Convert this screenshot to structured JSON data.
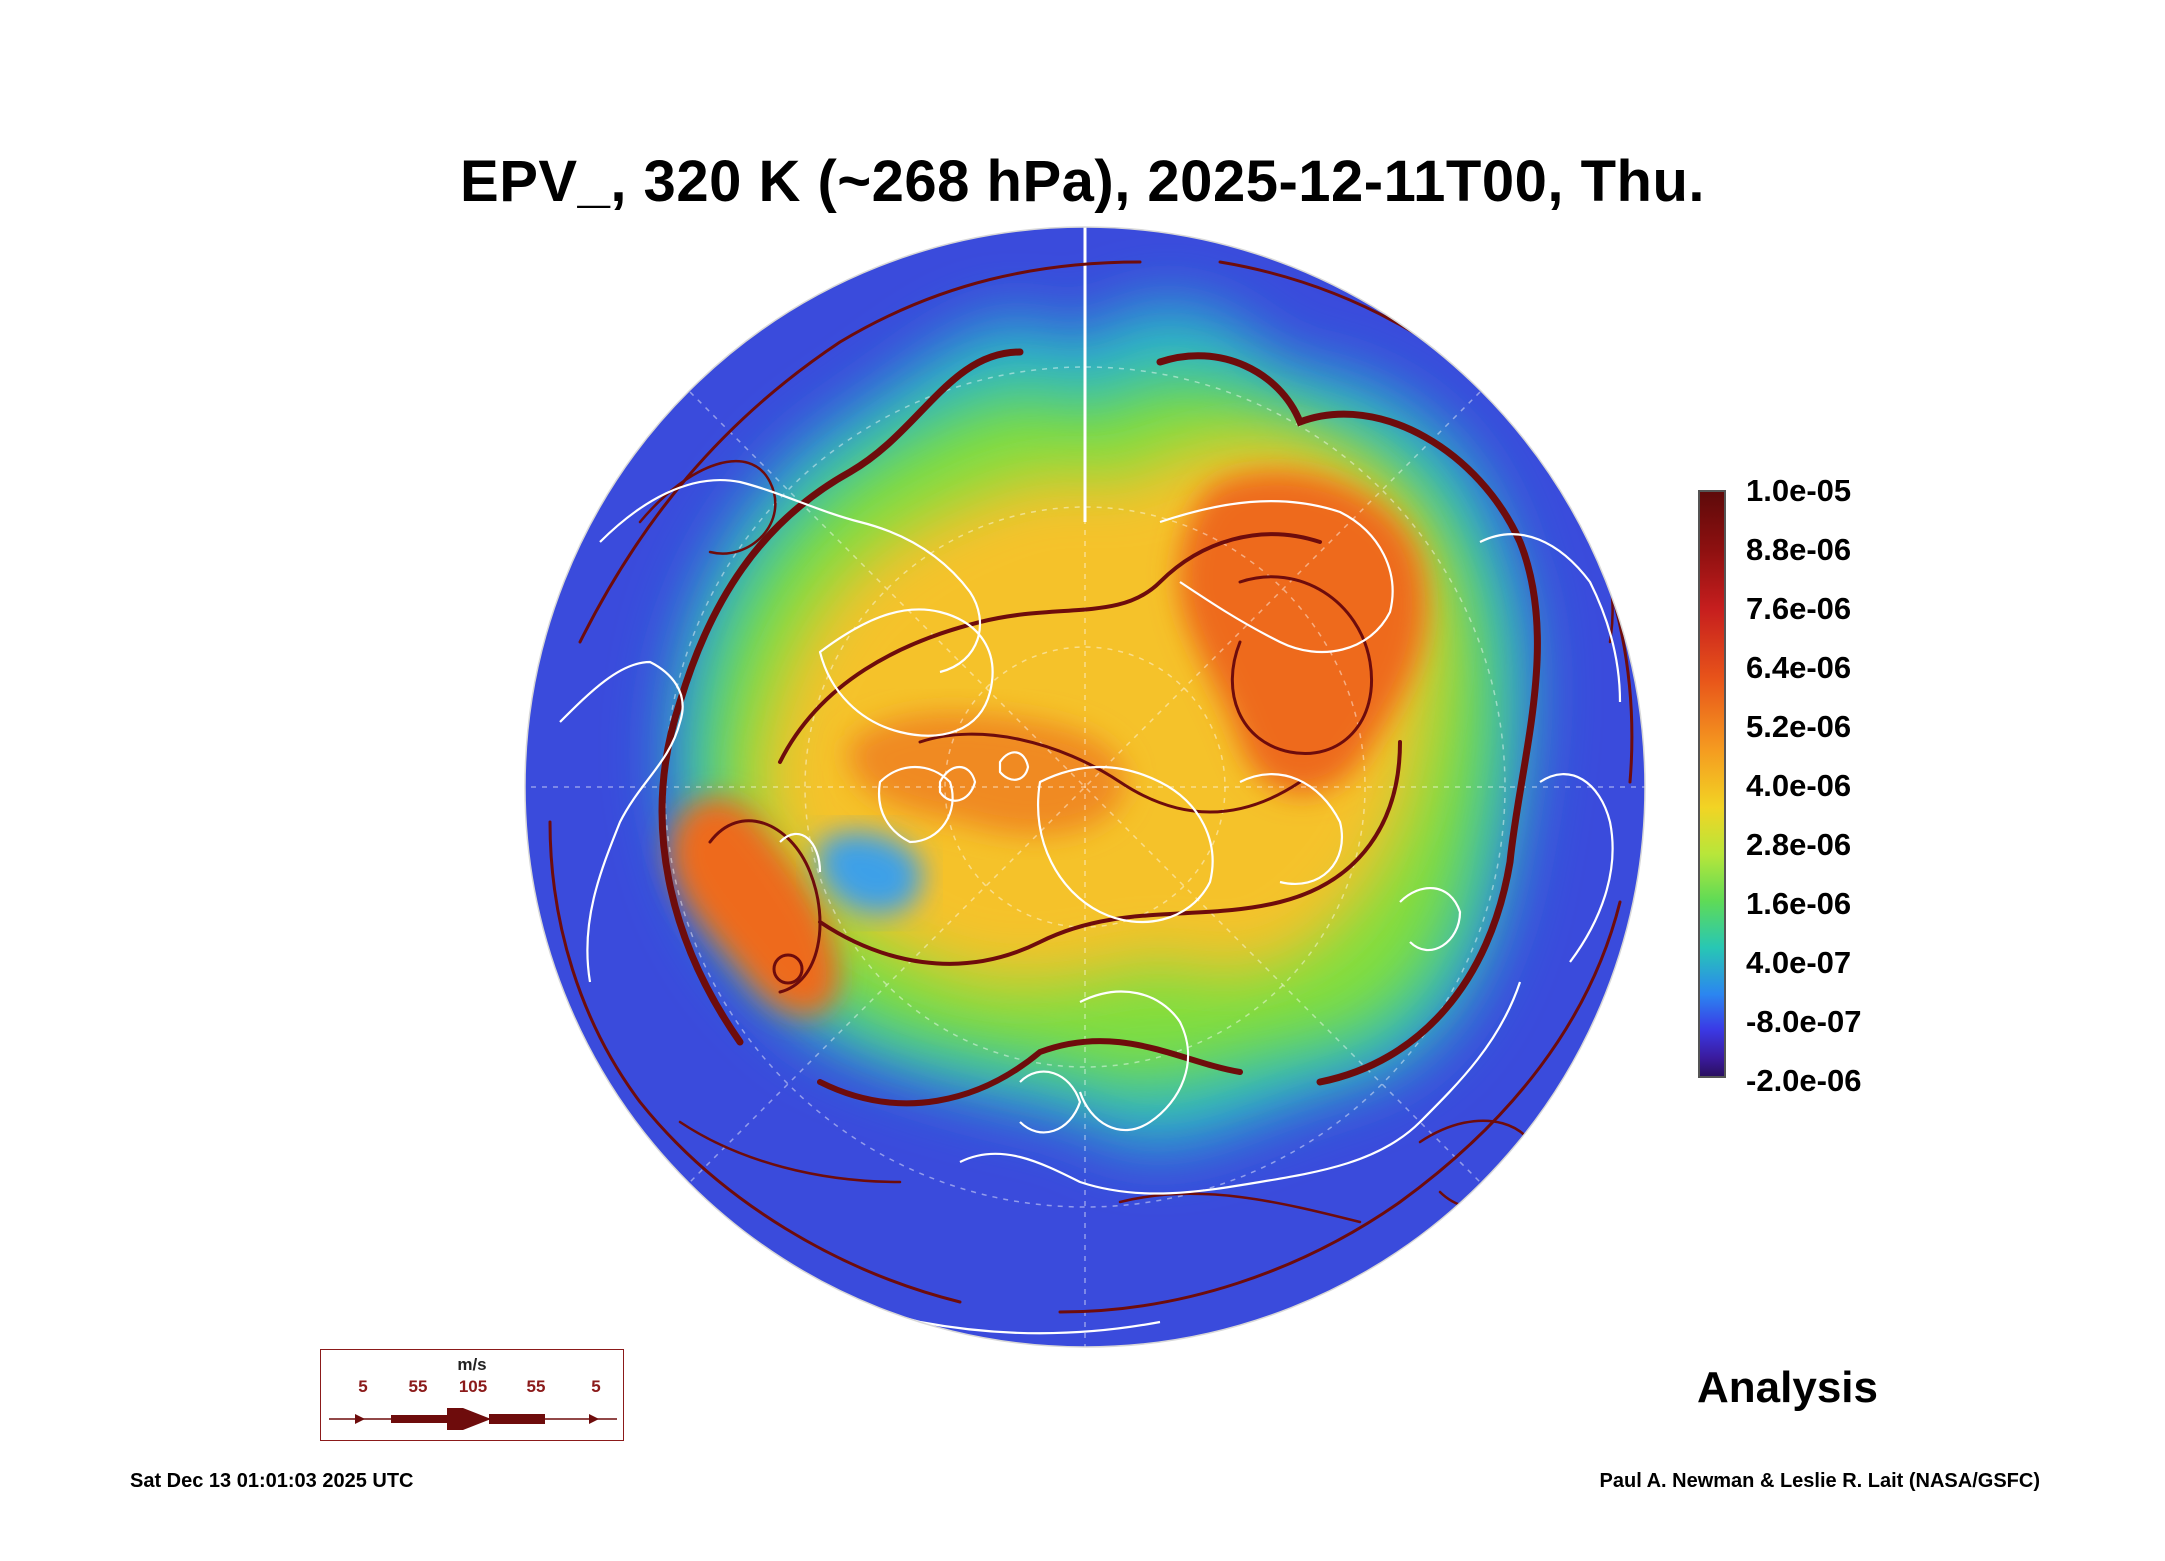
{
  "title": "EPV_, 320 K (~268 hPa), 2025-12-11T00, Thu.",
  "colorbar": {
    "labels": [
      "1.0e-05",
      "8.8e-06",
      "7.6e-06",
      "6.4e-06",
      "5.2e-06",
      "4.0e-06",
      "2.8e-06",
      "1.6e-06",
      "4.0e-07",
      "-8.0e-07",
      "-2.0e-06"
    ]
  },
  "legend": {
    "unit": "m/s",
    "values": [
      "5",
      "55",
      "105",
      "55",
      "5"
    ]
  },
  "label": "Analysis",
  "footer": {
    "timestamp": "Sat Dec 13 01:01:03 2025 UTC",
    "credit": "Paul A. Newman & Leslie R. Lait (NASA/GSFC)"
  },
  "colors": {
    "background_field": "#3a4bdc",
    "streamline": "#6e0c0c",
    "coastline": "#ffffff"
  }
}
